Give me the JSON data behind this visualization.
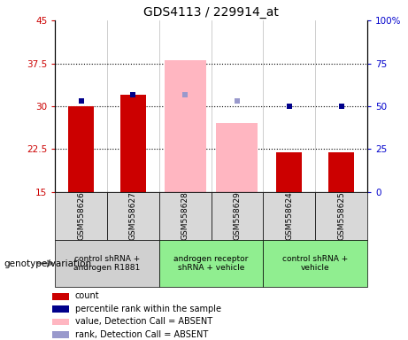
{
  "title": "GDS4113 / 229914_at",
  "samples": [
    "GSM558626",
    "GSM558627",
    "GSM558628",
    "GSM558629",
    "GSM558624",
    "GSM558625"
  ],
  "count_values": [
    30,
    32,
    null,
    null,
    22,
    22
  ],
  "count_color": "#cc0000",
  "percentile_values": [
    31,
    32,
    null,
    null,
    30,
    30
  ],
  "percentile_color": "#00008b",
  "absent_value_values": [
    null,
    null,
    38,
    27,
    null,
    null
  ],
  "absent_value_color": "#ffb6c1",
  "absent_rank_values": [
    null,
    null,
    32,
    31,
    null,
    null
  ],
  "absent_rank_color": "#9999cc",
  "ylim_left": [
    15,
    45
  ],
  "ylim_right": [
    0,
    100
  ],
  "yticks_left": [
    15,
    22.5,
    30,
    37.5,
    45
  ],
  "yticks_right": [
    0,
    25,
    50,
    75,
    100
  ],
  "ytick_labels_left": [
    "15",
    "22.5",
    "30",
    "37.5",
    "45"
  ],
  "ytick_labels_right": [
    "0",
    "25",
    "50",
    "75",
    "100%"
  ],
  "bar_width": 0.5,
  "marker_size": 5,
  "plot_bg": "#ffffff",
  "legend_items": [
    {
      "label": "count",
      "color": "#cc0000"
    },
    {
      "label": "percentile rank within the sample",
      "color": "#00008b"
    },
    {
      "label": "value, Detection Call = ABSENT",
      "color": "#ffb6c1"
    },
    {
      "label": "rank, Detection Call = ABSENT",
      "color": "#9999cc"
    }
  ],
  "group_sample_colors": [
    "#d0d0d0",
    "#d0d0d0",
    "#d0d0d0",
    "#d0d0d0",
    "#d0d0d0",
    "#d0d0d0"
  ],
  "groups_info": [
    {
      "start": 0,
      "end": 1,
      "color": "#d0d0d0",
      "label": "control shRNA +\nandrogen R1881"
    },
    {
      "start": 2,
      "end": 3,
      "color": "#90ee90",
      "label": "androgen receptor\nshRNA + vehicle"
    },
    {
      "start": 4,
      "end": 5,
      "color": "#90ee90",
      "label": "control shRNA +\nvehicle"
    }
  ],
  "genotype_label": "genotype/variation"
}
